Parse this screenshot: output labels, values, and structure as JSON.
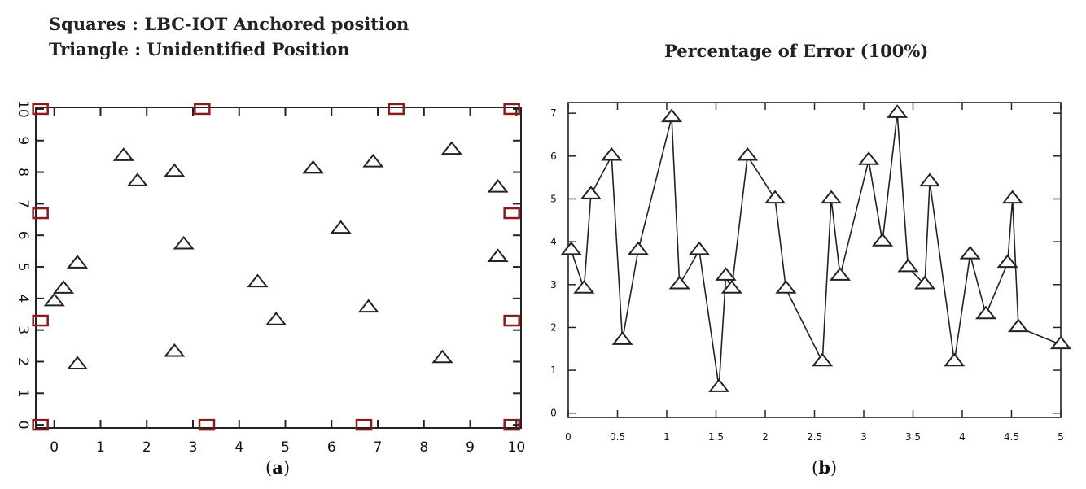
{
  "legend": {
    "line1": "Squares : LBC-IOT Anchored position",
    "line2": "Triangle : Unidentified Position"
  },
  "captions": {
    "a": "a",
    "b": "b"
  },
  "colors": {
    "anchor": "#8b1a1a",
    "frame": "#222222",
    "marker": "#222222"
  },
  "chart_data": [
    {
      "type": "scatter",
      "title": "",
      "xlabel": "",
      "ylabel": "",
      "xlim": [
        -0.4,
        10.1
      ],
      "ylim": [
        -0.1,
        10.05
      ],
      "xticks": [
        0,
        1,
        2,
        3,
        4,
        5,
        6,
        7,
        8,
        9,
        10
      ],
      "yticks": [
        0,
        1,
        2,
        3,
        4,
        5,
        6,
        7,
        8,
        9,
        10
      ],
      "grid": false,
      "series": [
        {
          "name": "Squares",
          "marker": "square",
          "points": [
            [
              -0.3,
              10
            ],
            [
              3.2,
              10
            ],
            [
              7.4,
              10
            ],
            [
              9.9,
              10
            ],
            [
              -0.3,
              6.7
            ],
            [
              9.9,
              6.7
            ],
            [
              -0.3,
              3.3
            ],
            [
              9.9,
              3.3
            ],
            [
              -0.3,
              0
            ],
            [
              3.3,
              0
            ],
            [
              6.7,
              0
            ],
            [
              9.9,
              0
            ]
          ]
        },
        {
          "name": "Triangle",
          "marker": "triangle",
          "points": [
            [
              0.5,
              5.1
            ],
            [
              0.2,
              4.3
            ],
            [
              0.0,
              3.9
            ],
            [
              0.5,
              1.9
            ],
            [
              1.5,
              8.5
            ],
            [
              1.8,
              7.7
            ],
            [
              2.6,
              8.0
            ],
            [
              2.8,
              5.7
            ],
            [
              2.6,
              2.3
            ],
            [
              4.4,
              4.5
            ],
            [
              4.8,
              3.3
            ],
            [
              5.6,
              8.1
            ],
            [
              6.2,
              6.2
            ],
            [
              6.8,
              3.7
            ],
            [
              6.9,
              8.3
            ],
            [
              8.4,
              2.1
            ],
            [
              8.6,
              8.7
            ],
            [
              9.6,
              7.5
            ],
            [
              9.6,
              5.3
            ]
          ]
        }
      ]
    },
    {
      "type": "line",
      "title": "Percentage of Error (100%)",
      "xlabel": "",
      "ylabel": "",
      "xlim": [
        0,
        5
      ],
      "ylim": [
        -0.1,
        7.25
      ],
      "xticks": [
        "0",
        "0.5",
        "1",
        "1.5",
        "2",
        "2.5",
        "3",
        "3.5",
        "4",
        "4.5",
        "5"
      ],
      "yticks": [
        "0",
        "1",
        "2",
        "3",
        "4",
        "5",
        "6",
        "7"
      ],
      "grid": false,
      "marker": "triangle",
      "x": [
        0.03,
        0.16,
        0.23,
        0.44,
        0.55,
        0.71,
        1.05,
        1.13,
        1.33,
        1.53,
        1.6,
        1.66,
        1.82,
        2.1,
        2.21,
        2.58,
        2.67,
        2.76,
        3.05,
        3.19,
        3.34,
        3.45,
        3.62,
        3.67,
        3.92,
        4.08,
        4.24,
        4.46,
        4.51,
        4.57,
        5.0
      ],
      "values": [
        3.8,
        2.9,
        5.1,
        6.0,
        1.7,
        3.8,
        6.9,
        3.0,
        3.8,
        0.6,
        3.2,
        2.9,
        6.0,
        5.0,
        2.9,
        1.2,
        5.0,
        3.2,
        5.9,
        4.0,
        7.0,
        3.4,
        3.0,
        5.4,
        1.2,
        3.7,
        2.3,
        3.5,
        5.0,
        2.0,
        1.6
      ]
    }
  ]
}
